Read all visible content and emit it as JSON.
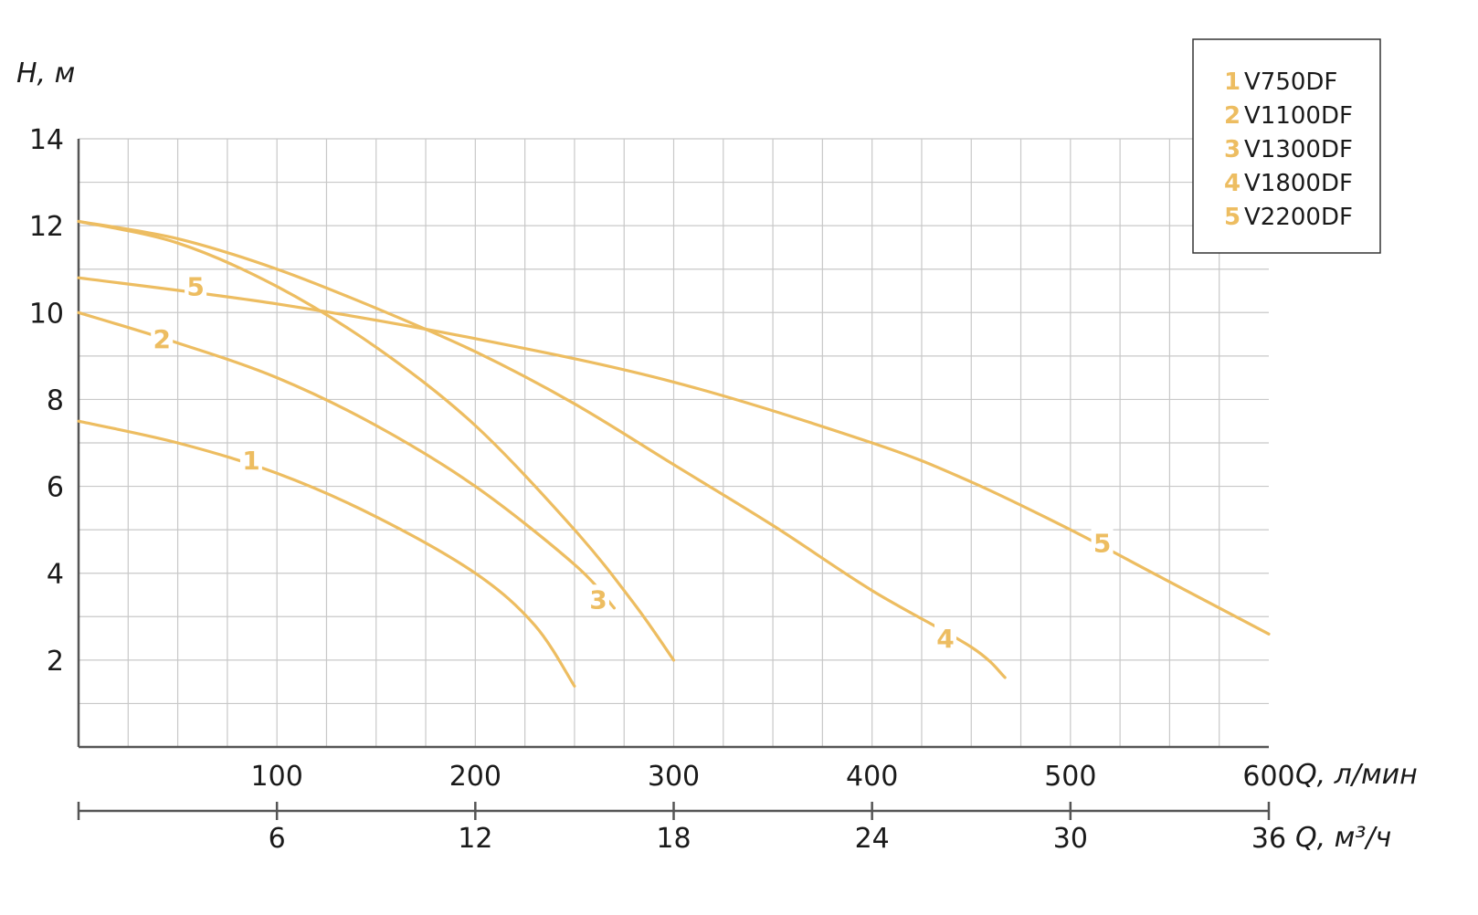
{
  "colors": {
    "curve": "#edbd61",
    "grid": "#c8c8c8",
    "axis": "#555555",
    "text": "#1a1a1a"
  },
  "chart_data": {
    "type": "line",
    "ylabel": "H, м",
    "xlabel": "Q, л/мин",
    "x2label": "Q, м³/ч",
    "xlim": [
      0,
      600
    ],
    "ylim": [
      0,
      14
    ],
    "grid": true,
    "legend_position": "top-right",
    "y_ticks": [
      2,
      4,
      6,
      8,
      10,
      12,
      14
    ],
    "x_ticks": [
      100,
      200,
      300,
      400,
      500,
      600
    ],
    "x2_ticks": [
      {
        "q_lmin": 100,
        "label": "6"
      },
      {
        "q_lmin": 200,
        "label": "12"
      },
      {
        "q_lmin": 300,
        "label": "18"
      },
      {
        "q_lmin": 400,
        "label": "24"
      },
      {
        "q_lmin": 500,
        "label": "30"
      },
      {
        "q_lmin": 600,
        "label": "36"
      }
    ],
    "series": [
      {
        "id": "1",
        "name": "V750DF",
        "label_point": [
          87,
          6.6
        ],
        "points": [
          [
            0,
            7.5
          ],
          [
            50,
            7.0
          ],
          [
            100,
            6.3
          ],
          [
            150,
            5.3
          ],
          [
            200,
            4.0
          ],
          [
            230,
            2.8
          ],
          [
            250,
            1.4
          ]
        ]
      },
      {
        "id": "2",
        "name": "V1100DF",
        "label_point": [
          42,
          9.4
        ],
        "points": [
          [
            0,
            10.0
          ],
          [
            50,
            9.3
          ],
          [
            100,
            8.5
          ],
          [
            150,
            7.4
          ],
          [
            200,
            6.0
          ],
          [
            250,
            4.2
          ],
          [
            270,
            3.2
          ]
        ]
      },
      {
        "id": "3",
        "name": "V1300DF",
        "label_point": [
          262,
          3.4
        ],
        "points": [
          [
            0,
            12.1
          ],
          [
            50,
            11.6
          ],
          [
            100,
            10.6
          ],
          [
            150,
            9.2
          ],
          [
            200,
            7.4
          ],
          [
            250,
            5.0
          ],
          [
            280,
            3.3
          ],
          [
            300,
            2.0
          ]
        ]
      },
      {
        "id": "4",
        "name": "V1800DF",
        "label_point": [
          437,
          2.5
        ],
        "points": [
          [
            0,
            12.1
          ],
          [
            50,
            11.7
          ],
          [
            100,
            11.0
          ],
          [
            150,
            10.1
          ],
          [
            200,
            9.1
          ],
          [
            250,
            7.9
          ],
          [
            300,
            6.5
          ],
          [
            350,
            5.1
          ],
          [
            400,
            3.6
          ],
          [
            450,
            2.3
          ],
          [
            467,
            1.6
          ]
        ]
      },
      {
        "id": "5",
        "name": "V2200DF",
        "label_point": [
          59,
          10.6
        ],
        "points": [
          [
            0,
            10.8
          ],
          [
            100,
            10.2
          ],
          [
            200,
            9.4
          ],
          [
            300,
            8.4
          ],
          [
            400,
            7.0
          ],
          [
            450,
            6.1
          ],
          [
            500,
            5.0
          ],
          [
            550,
            3.8
          ],
          [
            600,
            2.6
          ]
        ]
      }
    ],
    "extra_labels": [
      {
        "id": "5",
        "label_point": [
          516,
          4.7
        ]
      }
    ]
  }
}
